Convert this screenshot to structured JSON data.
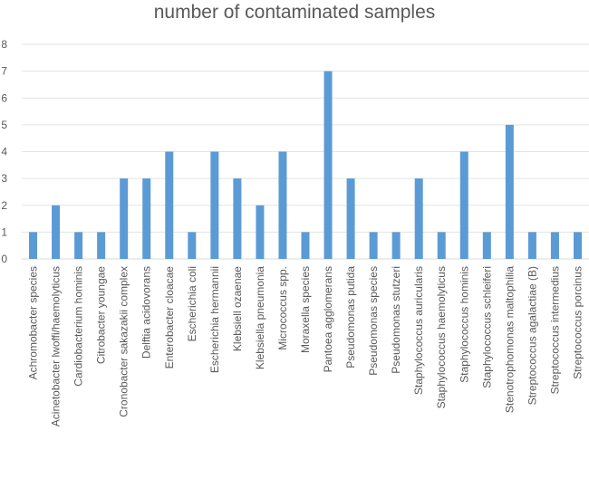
{
  "chart_data": {
    "type": "bar",
    "title": "number of contaminated samples",
    "xlabel": "",
    "ylabel": "",
    "ylim": [
      0,
      8
    ],
    "yticks": [
      0,
      1,
      2,
      3,
      4,
      5,
      6,
      7,
      8
    ],
    "grid": true,
    "bar_color": "#5B9BD5",
    "categories": [
      "Achromobacter species",
      "Acinetobacter lwoffi/haemolyticus",
      "Cardiobacterium hominis",
      "Citrobacter youngae",
      "Cronobacter sakazakii complex",
      "Delftia acidovorans",
      "Enterobacter cloacae",
      "Escherichia coli",
      "Escherichia hermannii",
      "Klebsiell ozaenae",
      "Klebsiella pneumonia",
      "Micrococcus spp.",
      "Moraxella species",
      "Pantoea agglomerans",
      "Pseudomonas putida",
      "Pseudomonas species",
      "Pseudomonas stutzeri",
      "Staphylococcus auricularis",
      "Staphylococcus haemolyticus",
      "Staphylococcus hominis",
      "Staphylococcus schleiferi",
      "Stenotrophomonas maltophilia",
      "Streptococcus agalactiae (B)",
      "Streptococcus intermedius",
      "Streptococcus porcinus"
    ],
    "values": [
      1,
      2,
      1,
      1,
      3,
      3,
      4,
      1,
      4,
      3,
      2,
      4,
      1,
      7,
      3,
      1,
      1,
      3,
      1,
      4,
      1,
      5,
      1,
      1,
      1
    ]
  }
}
